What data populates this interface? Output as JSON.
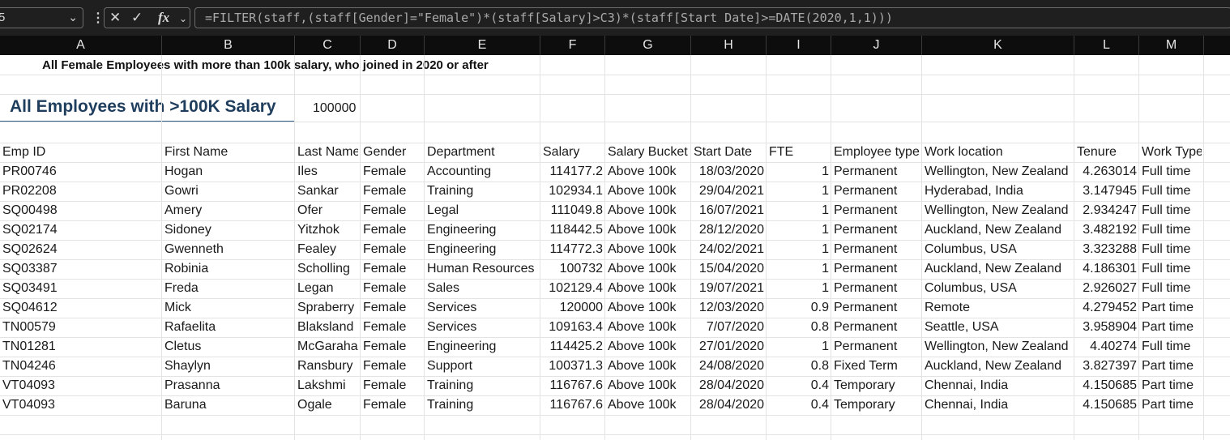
{
  "formula_bar": {
    "name_box": "5",
    "formula": "=FILTER(staff,(staff[Gender]=\"Female\")*(staff[Salary]>C3)*(staff[Start Date]>=DATE(2020,1,1)))",
    "icons": [
      "chevron-down-icon",
      "more-vertical-icon",
      "cancel-icon",
      "check-icon",
      "fx-icon"
    ]
  },
  "columns": [
    "A",
    "B",
    "C",
    "D",
    "E",
    "F",
    "G",
    "H",
    "I",
    "J",
    "K",
    "L",
    "M"
  ],
  "sheet": {
    "note": "All Female Employees with more than 100k salary, who joined in 2020 or after",
    "section_title": "All  Employees with >100K Salary",
    "threshold": "100000",
    "headers": [
      "Emp ID",
      "First Name",
      "Last Name",
      "Gender",
      "Department",
      "Salary",
      "Salary Bucket",
      "Start Date",
      "FTE",
      "Employee type",
      "Work location",
      "Tenure",
      "Work Type"
    ],
    "rows": [
      [
        "PR00746",
        "Hogan",
        "Iles",
        "Female",
        "Accounting",
        "114177.2",
        "Above 100k",
        "18/03/2020",
        "1",
        "Permanent",
        "Wellington, New Zealand",
        "4.263014",
        "Full time"
      ],
      [
        "PR02208",
        "Gowri",
        "Sankar",
        "Female",
        "Training",
        "102934.1",
        "Above 100k",
        "29/04/2021",
        "1",
        "Permanent",
        "Hyderabad, India",
        "3.147945",
        "Full time"
      ],
      [
        "SQ00498",
        "Amery",
        "Ofer",
        "Female",
        "Legal",
        "111049.8",
        "Above 100k",
        "16/07/2021",
        "1",
        "Permanent",
        "Wellington, New Zealand",
        "2.934247",
        "Full time"
      ],
      [
        "SQ02174",
        "Sidoney",
        "Yitzhok",
        "Female",
        "Engineering",
        "118442.5",
        "Above 100k",
        "28/12/2020",
        "1",
        "Permanent",
        "Auckland, New Zealand",
        "3.482192",
        "Full time"
      ],
      [
        "SQ02624",
        "Gwenneth",
        "Fealey",
        "Female",
        "Engineering",
        "114772.3",
        "Above 100k",
        "24/02/2021",
        "1",
        "Permanent",
        "Columbus, USA",
        "3.323288",
        "Full time"
      ],
      [
        "SQ03387",
        "Robinia",
        "Scholling",
        "Female",
        "Human Resources",
        "100732",
        "Above 100k",
        "15/04/2020",
        "1",
        "Permanent",
        "Auckland, New Zealand",
        "4.186301",
        "Full time"
      ],
      [
        "SQ03491",
        "Freda",
        "Legan",
        "Female",
        "Sales",
        "102129.4",
        "Above 100k",
        "19/07/2021",
        "1",
        "Permanent",
        "Columbus, USA",
        "2.926027",
        "Full time"
      ],
      [
        "SQ04612",
        "Mick",
        "Spraberry",
        "Female",
        "Services",
        "120000",
        "Above 100k",
        "12/03/2020",
        "0.9",
        "Permanent",
        "Remote",
        "4.279452",
        "Part time"
      ],
      [
        "TN00579",
        "Rafaelita",
        "Blaksland",
        "Female",
        "Services",
        "109163.4",
        "Above 100k",
        "7/07/2020",
        "0.8",
        "Permanent",
        "Seattle, USA",
        "3.958904",
        "Part time"
      ],
      [
        "TN01281",
        "Cletus",
        "McGaraha",
        "Female",
        "Engineering",
        "114425.2",
        "Above 100k",
        "27/01/2020",
        "1",
        "Permanent",
        "Wellington, New Zealand",
        "4.40274",
        "Full time"
      ],
      [
        "TN04246",
        "Shaylyn",
        "Ransbury",
        "Female",
        "Support",
        "100371.3",
        "Above 100k",
        "24/08/2020",
        "0.8",
        "Fixed Term",
        "Auckland, New Zealand",
        "3.827397",
        "Part time"
      ],
      [
        "VT04093",
        "Prasanna",
        "Lakshmi",
        "Female",
        "Training",
        "116767.6",
        "Above 100k",
        "28/04/2020",
        "0.4",
        "Temporary",
        "Chennai, India",
        "4.150685",
        "Part time"
      ],
      [
        "VT04093",
        "Baruna",
        "Ogale",
        "Female",
        "Training",
        "116767.6",
        "Above 100k",
        "28/04/2020",
        "0.4",
        "Temporary",
        "Chennai, India",
        "4.150685",
        "Part time"
      ]
    ]
  }
}
